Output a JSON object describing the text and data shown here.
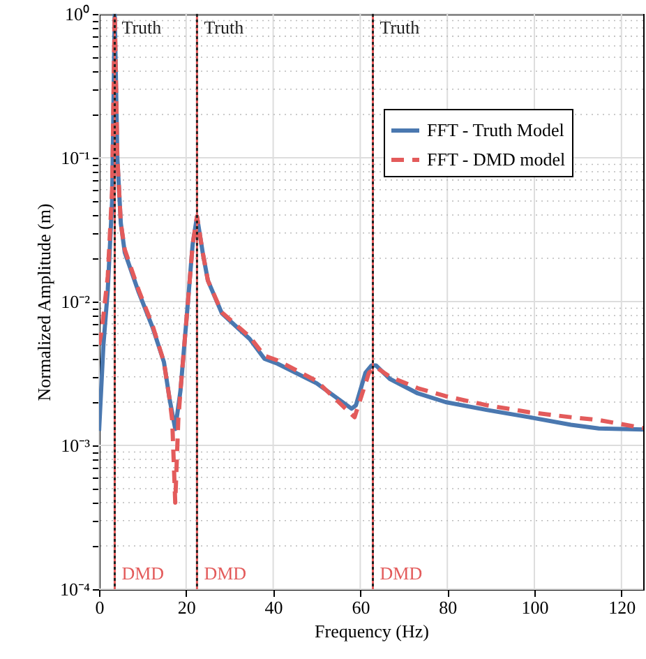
{
  "chart_data": {
    "type": "line",
    "xlabel": "Frequency (Hz)",
    "ylabel": "Normalized Amplitude (m)",
    "log": "y",
    "grid": true,
    "legend": "top right",
    "marker": "none",
    "xlim": [
      0,
      125
    ],
    "xticks": [
      0,
      20,
      40,
      60,
      80,
      100,
      120
    ],
    "ylim": [
      0.0001,
      1
    ],
    "yticks": [
      {
        "value": 0.0001,
        "label": "10⁻⁴"
      },
      {
        "value": 0.0002,
        "label": null
      },
      {
        "value": 0.0003,
        "label": null
      },
      {
        "value": 0.0004,
        "label": null
      },
      {
        "value": 0.0005,
        "label": null
      },
      {
        "value": 0.0006,
        "label": null
      },
      {
        "value": 0.0007,
        "label": null
      },
      {
        "value": 0.0008,
        "label": null
      },
      {
        "value": 0.0009,
        "label": null
      },
      {
        "value": 0.001,
        "label": "10⁻³"
      },
      {
        "value": 0.002,
        "label": null
      },
      {
        "value": 0.003,
        "label": null
      },
      {
        "value": 0.004,
        "label": null
      },
      {
        "value": 0.005,
        "label": null
      },
      {
        "value": 0.006,
        "label": null
      },
      {
        "value": 0.007,
        "label": null
      },
      {
        "value": 0.008,
        "label": null
      },
      {
        "value": 0.009,
        "label": null
      },
      {
        "value": 0.01,
        "label": "10⁻²"
      },
      {
        "value": 0.02,
        "label": null
      },
      {
        "value": 0.03,
        "label": null
      },
      {
        "value": 0.04,
        "label": null
      },
      {
        "value": 0.05,
        "label": null
      },
      {
        "value": 0.06,
        "label": null
      },
      {
        "value": 0.07,
        "label": null
      },
      {
        "value": 0.08,
        "label": null
      },
      {
        "value": 0.09,
        "label": null
      },
      {
        "value": 0.1,
        "label": "10⁻¹"
      },
      {
        "value": 0.2,
        "label": null
      },
      {
        "value": 0.3,
        "label": null
      },
      {
        "value": 0.4,
        "label": null
      },
      {
        "value": 0.5,
        "label": null
      },
      {
        "value": 0.6,
        "label": null
      },
      {
        "value": 0.7,
        "label": null
      },
      {
        "value": 0.8,
        "label": null
      },
      {
        "value": 0.9,
        "label": null
      },
      {
        "value": 1,
        "label": "10⁰"
      }
    ],
    "series": [
      {
        "name": "FFT - Truth Model",
        "color": "#4a78b0",
        "line_style": "solid",
        "x": [
          0,
          0.5,
          1,
          2,
          3,
          3.6,
          4.2,
          5,
          5.9,
          9.1,
          12.3,
          14.9,
          16.2,
          17.5,
          18.7,
          20.3,
          21.5,
          22.5,
          23.8,
          25,
          28.2,
          34.6,
          38,
          41,
          50,
          58,
          59,
          61.2,
          62.6,
          63.6,
          66.8,
          73.2,
          79.6,
          89.2,
          98.8,
          108.4,
          114.8,
          125
        ],
        "values": [
          0.00126,
          0.0025,
          0.005,
          0.012,
          0.05,
          1.0,
          0.1,
          0.035,
          0.022,
          0.0116,
          0.0066,
          0.0038,
          0.0021,
          0.0013,
          0.0024,
          0.009,
          0.025,
          0.039,
          0.022,
          0.014,
          0.0083,
          0.0055,
          0.004,
          0.0037,
          0.0027,
          0.0018,
          0.0019,
          0.0032,
          0.0036,
          0.0036,
          0.0029,
          0.0023,
          0.002,
          0.00176,
          0.00157,
          0.00139,
          0.00131,
          0.00129
        ]
      },
      {
        "name": "FFT - DMD model",
        "color": "#e35b5b",
        "line_style": "dashed",
        "x": [
          0,
          0.5,
          1,
          2,
          3,
          3.6,
          4.2,
          5,
          5.9,
          9.1,
          12.3,
          14.9,
          16.2,
          16.8,
          17.5,
          18.2,
          18.7,
          20.3,
          21.5,
          22.5,
          23.8,
          25,
          28.2,
          34.6,
          38,
          41,
          50,
          58.7,
          62,
          63.6,
          66.8,
          73.2,
          79.6,
          89.2,
          98.8,
          108.4,
          114.8,
          125
        ],
        "values": [
          0.005,
          0.006,
          0.008,
          0.015,
          0.06,
          1.0,
          0.1,
          0.035,
          0.023,
          0.012,
          0.0068,
          0.0038,
          0.0021,
          0.0015,
          0.0004,
          0.0015,
          0.0024,
          0.009,
          0.025,
          0.039,
          0.022,
          0.014,
          0.0084,
          0.0057,
          0.0042,
          0.0039,
          0.0028,
          0.00157,
          0.0032,
          0.0035,
          0.003,
          0.0025,
          0.0022,
          0.0019,
          0.0017,
          0.00157,
          0.0015,
          0.00132
        ]
      }
    ],
    "ref_lines": [
      {
        "axis": "x",
        "value": 3.6,
        "label": "Truth",
        "color": "#222222",
        "line_style": "dotted"
      },
      {
        "axis": "x",
        "value": 22.5,
        "label": "Truth",
        "color": "#222222",
        "line_style": "dotted"
      },
      {
        "axis": "x",
        "value": 62.9,
        "label": "Truth",
        "color": "#222222",
        "line_style": "dotted"
      },
      {
        "axis": "x",
        "value": 3.6,
        "label": "DMD",
        "color": "#e35b5b",
        "line_style": "dotted"
      },
      {
        "axis": "x",
        "value": 22.5,
        "label": "DMD",
        "color": "#e35b5b",
        "line_style": "dotted"
      },
      {
        "axis": "x",
        "value": 62.9,
        "label": "DMD",
        "color": "#e35b5b",
        "line_style": "dotted"
      }
    ]
  }
}
